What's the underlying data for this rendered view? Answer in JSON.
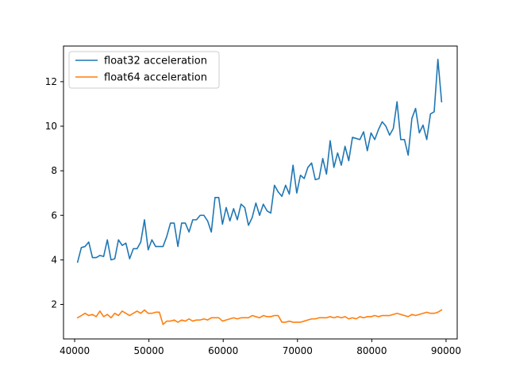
{
  "chart_data": {
    "type": "line",
    "title": "",
    "xlabel": "",
    "ylabel": "",
    "xlim": [
      38500,
      91500
    ],
    "ylim": [
      0.45,
      13.6
    ],
    "x_ticks": [
      40000,
      50000,
      60000,
      70000,
      80000,
      90000
    ],
    "y_ticks": [
      2,
      4,
      6,
      8,
      10,
      12
    ],
    "grid": false,
    "legend": "top-left",
    "x": [
      40400,
      40900,
      41400,
      41900,
      42400,
      42900,
      43400,
      43900,
      44400,
      44900,
      45400,
      45900,
      46400,
      46900,
      47400,
      47900,
      48400,
      48900,
      49400,
      49900,
      50400,
      50900,
      51400,
      51900,
      52400,
      52900,
      53400,
      53900,
      54400,
      54900,
      55400,
      55900,
      56400,
      56900,
      57400,
      57900,
      58400,
      58900,
      59400,
      59900,
      60400,
      60900,
      61400,
      61900,
      62400,
      62900,
      63400,
      63900,
      64400,
      64900,
      65400,
      65900,
      66400,
      66900,
      67400,
      67900,
      68400,
      68900,
      69400,
      69900,
      70400,
      70900,
      71400,
      71900,
      72400,
      72900,
      73400,
      73900,
      74400,
      74900,
      75400,
      75900,
      76400,
      76900,
      77400,
      77900,
      78400,
      78900,
      79400,
      79900,
      80400,
      80900,
      81400,
      81900,
      82400,
      82900,
      83400,
      83900,
      84400,
      84900,
      85400,
      85900,
      86400,
      86900,
      87400,
      87900,
      88400,
      88900,
      89400
    ],
    "series": [
      {
        "name": "float32 acceleration",
        "color": "#1f77b4",
        "values": [
          3.9,
          4.55,
          4.6,
          4.8,
          4.1,
          4.1,
          4.2,
          4.15,
          4.9,
          4.0,
          4.05,
          4.9,
          4.65,
          4.75,
          4.05,
          4.5,
          4.5,
          4.8,
          5.8,
          4.45,
          4.9,
          4.6,
          4.6,
          4.6,
          5.05,
          5.65,
          5.65,
          4.6,
          5.65,
          5.65,
          5.25,
          5.8,
          5.8,
          6.0,
          6.0,
          5.75,
          5.25,
          6.8,
          6.8,
          5.6,
          6.35,
          5.75,
          6.3,
          5.8,
          6.5,
          6.35,
          5.55,
          5.9,
          6.55,
          6.0,
          6.5,
          6.2,
          6.1,
          7.35,
          7.05,
          6.85,
          7.35,
          6.95,
          8.25,
          7.0,
          7.8,
          7.65,
          8.15,
          8.35,
          7.6,
          7.65,
          8.55,
          7.85,
          9.35,
          8.15,
          8.8,
          8.25,
          9.1,
          8.45,
          9.5,
          9.45,
          9.4,
          9.75,
          8.9,
          9.7,
          9.4,
          9.85,
          10.2,
          10.0,
          9.6,
          9.9,
          11.1,
          9.4,
          9.4,
          8.7,
          10.35,
          10.8,
          9.7,
          10.05,
          9.4,
          10.55,
          10.65,
          13.0,
          11.1
        ]
      },
      {
        "name": "float64 acceleration",
        "color": "#ff7f0e",
        "values": [
          1.4,
          1.5,
          1.6,
          1.5,
          1.55,
          1.45,
          1.7,
          1.45,
          1.55,
          1.4,
          1.6,
          1.5,
          1.7,
          1.6,
          1.5,
          1.6,
          1.7,
          1.6,
          1.75,
          1.6,
          1.6,
          1.65,
          1.65,
          1.1,
          1.25,
          1.25,
          1.3,
          1.2,
          1.3,
          1.25,
          1.35,
          1.25,
          1.3,
          1.3,
          1.35,
          1.3,
          1.4,
          1.4,
          1.4,
          1.25,
          1.3,
          1.35,
          1.4,
          1.35,
          1.4,
          1.4,
          1.4,
          1.5,
          1.45,
          1.4,
          1.5,
          1.45,
          1.45,
          1.5,
          1.5,
          1.2,
          1.2,
          1.25,
          1.2,
          1.2,
          1.2,
          1.25,
          1.3,
          1.35,
          1.35,
          1.4,
          1.4,
          1.4,
          1.45,
          1.4,
          1.45,
          1.4,
          1.45,
          1.35,
          1.4,
          1.35,
          1.45,
          1.4,
          1.45,
          1.45,
          1.5,
          1.45,
          1.5,
          1.5,
          1.5,
          1.55,
          1.6,
          1.55,
          1.5,
          1.45,
          1.55,
          1.5,
          1.55,
          1.6,
          1.65,
          1.6,
          1.6,
          1.65,
          1.75
        ]
      }
    ]
  }
}
